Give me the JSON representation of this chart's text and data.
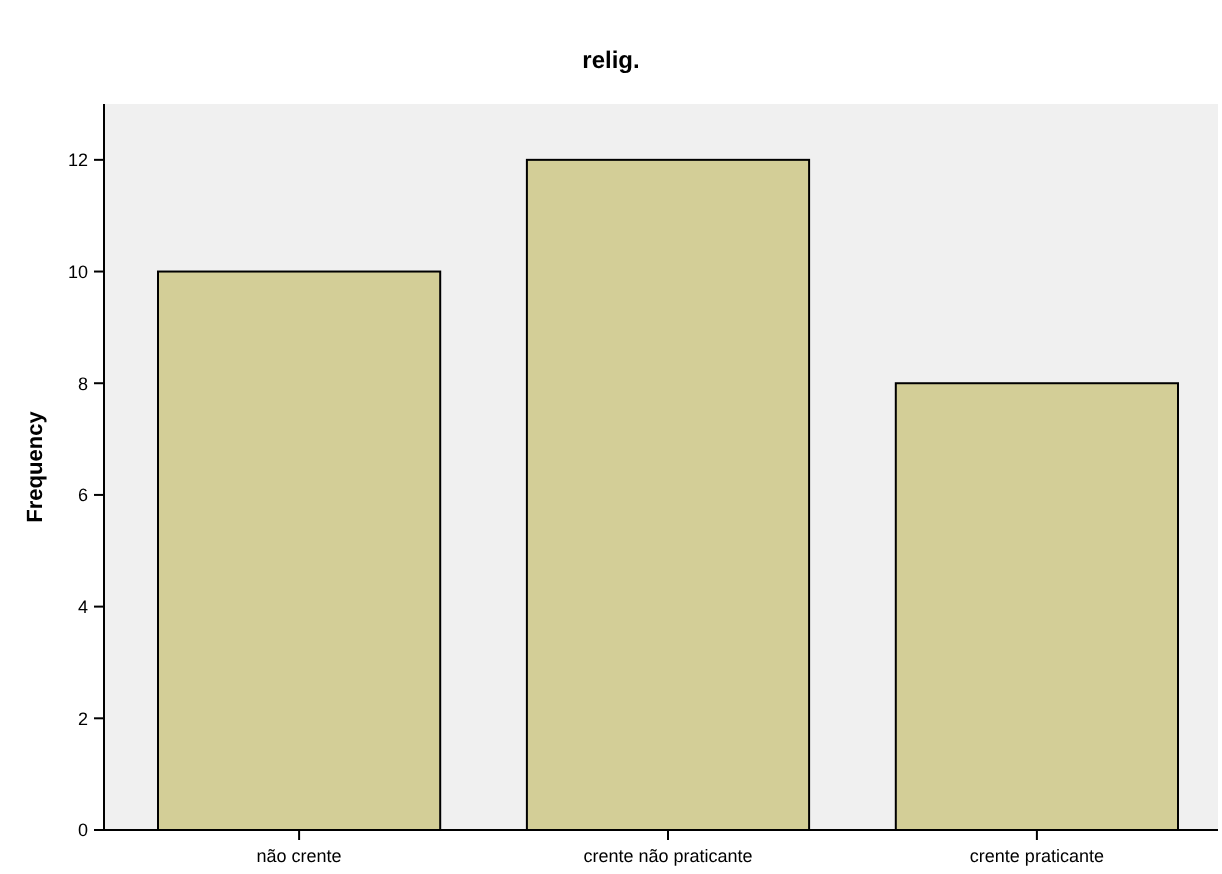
{
  "chart_data": {
    "type": "bar",
    "title": "relig.",
    "ylabel": "Frequency",
    "categories": [
      "não crente",
      "crente não praticante",
      "crente praticante"
    ],
    "values": [
      10,
      12,
      8
    ],
    "color": "#d3ce97",
    "ylim": [
      0,
      13
    ],
    "yticks": [
      0,
      2,
      4,
      6,
      8,
      10,
      12
    ],
    "grid": false
  }
}
